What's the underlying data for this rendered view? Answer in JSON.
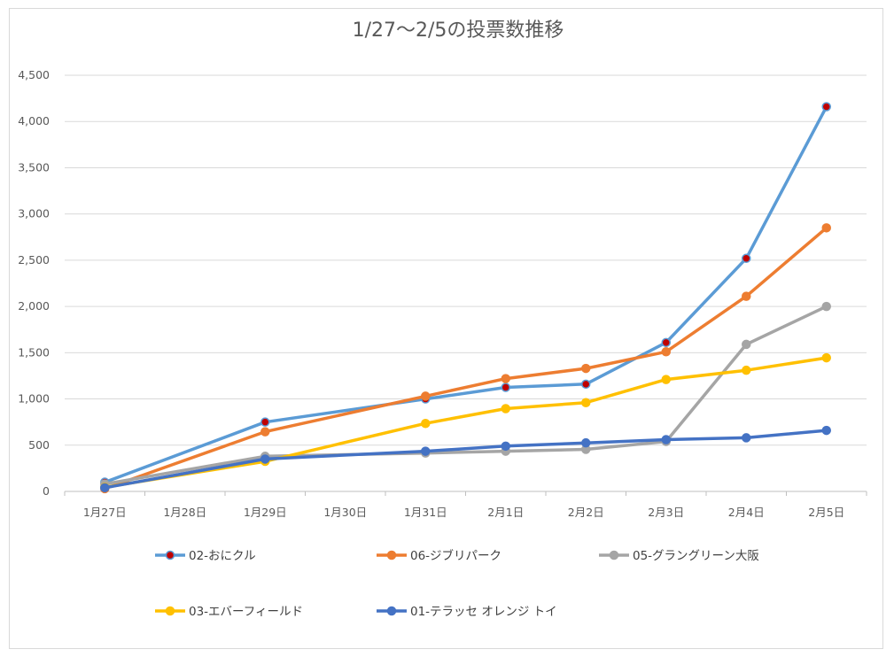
{
  "chart_data": {
    "type": "line",
    "title": "1/27〜2/5の投票数推移",
    "categories": [
      "1月27日",
      "1月28日",
      "1月29日",
      "1月30日",
      "1月31日",
      "2月1日",
      "2月2日",
      "2月3日",
      "2月4日",
      "2月5日"
    ],
    "y_ticks": [
      "0",
      "500",
      "1,000",
      "1,500",
      "2,000",
      "2,500",
      "3,000",
      "3,500",
      "4,000",
      "4,500"
    ],
    "ylim": [
      0,
      4500
    ],
    "grid": true,
    "legend_position": "bottom",
    "series": [
      {
        "name": "02-おにクル",
        "color": "#5b9bd5",
        "marker_color": "#c00000",
        "points": [
          {
            "i": 0,
            "v": 100
          },
          {
            "i": 2,
            "v": 750
          },
          {
            "i": 4,
            "v": 1000
          },
          {
            "i": 5,
            "v": 1125
          },
          {
            "i": 6,
            "v": 1160
          },
          {
            "i": 7,
            "v": 1610
          },
          {
            "i": 8,
            "v": 2520
          },
          {
            "i": 9,
            "v": 4160
          }
        ]
      },
      {
        "name": "06-ジブリパーク",
        "color": "#ed7d31",
        "marker_color": "#ed7d31",
        "points": [
          {
            "i": 0,
            "v": 30
          },
          {
            "i": 2,
            "v": 645
          },
          {
            "i": 4,
            "v": 1030
          },
          {
            "i": 5,
            "v": 1220
          },
          {
            "i": 6,
            "v": 1330
          },
          {
            "i": 7,
            "v": 1510
          },
          {
            "i": 8,
            "v": 2110
          },
          {
            "i": 9,
            "v": 2850
          }
        ]
      },
      {
        "name": "05-グラングリーン大阪",
        "color": "#a5a5a5",
        "marker_color": "#a5a5a5",
        "points": [
          {
            "i": 0,
            "v": 80
          },
          {
            "i": 2,
            "v": 380
          },
          {
            "i": 4,
            "v": 415
          },
          {
            "i": 5,
            "v": 435
          },
          {
            "i": 6,
            "v": 455
          },
          {
            "i": 7,
            "v": 540
          },
          {
            "i": 8,
            "v": 1590
          },
          {
            "i": 9,
            "v": 2000
          }
        ]
      },
      {
        "name": "03-エバーフィールド",
        "color": "#ffc000",
        "marker_color": "#ffc000",
        "points": [
          {
            "i": 0,
            "v": 45
          },
          {
            "i": 2,
            "v": 325
          },
          {
            "i": 4,
            "v": 735
          },
          {
            "i": 5,
            "v": 895
          },
          {
            "i": 6,
            "v": 960
          },
          {
            "i": 7,
            "v": 1210
          },
          {
            "i": 8,
            "v": 1310
          },
          {
            "i": 9,
            "v": 1445
          }
        ]
      },
      {
        "name": "01-テラッセ オレンジ トイ",
        "color": "#4472c4",
        "marker_color": "#4472c4",
        "points": [
          {
            "i": 0,
            "v": 40
          },
          {
            "i": 2,
            "v": 350
          },
          {
            "i": 4,
            "v": 435
          },
          {
            "i": 5,
            "v": 490
          },
          {
            "i": 6,
            "v": 525
          },
          {
            "i": 7,
            "v": 560
          },
          {
            "i": 8,
            "v": 580
          },
          {
            "i": 9,
            "v": 660
          }
        ]
      }
    ]
  }
}
